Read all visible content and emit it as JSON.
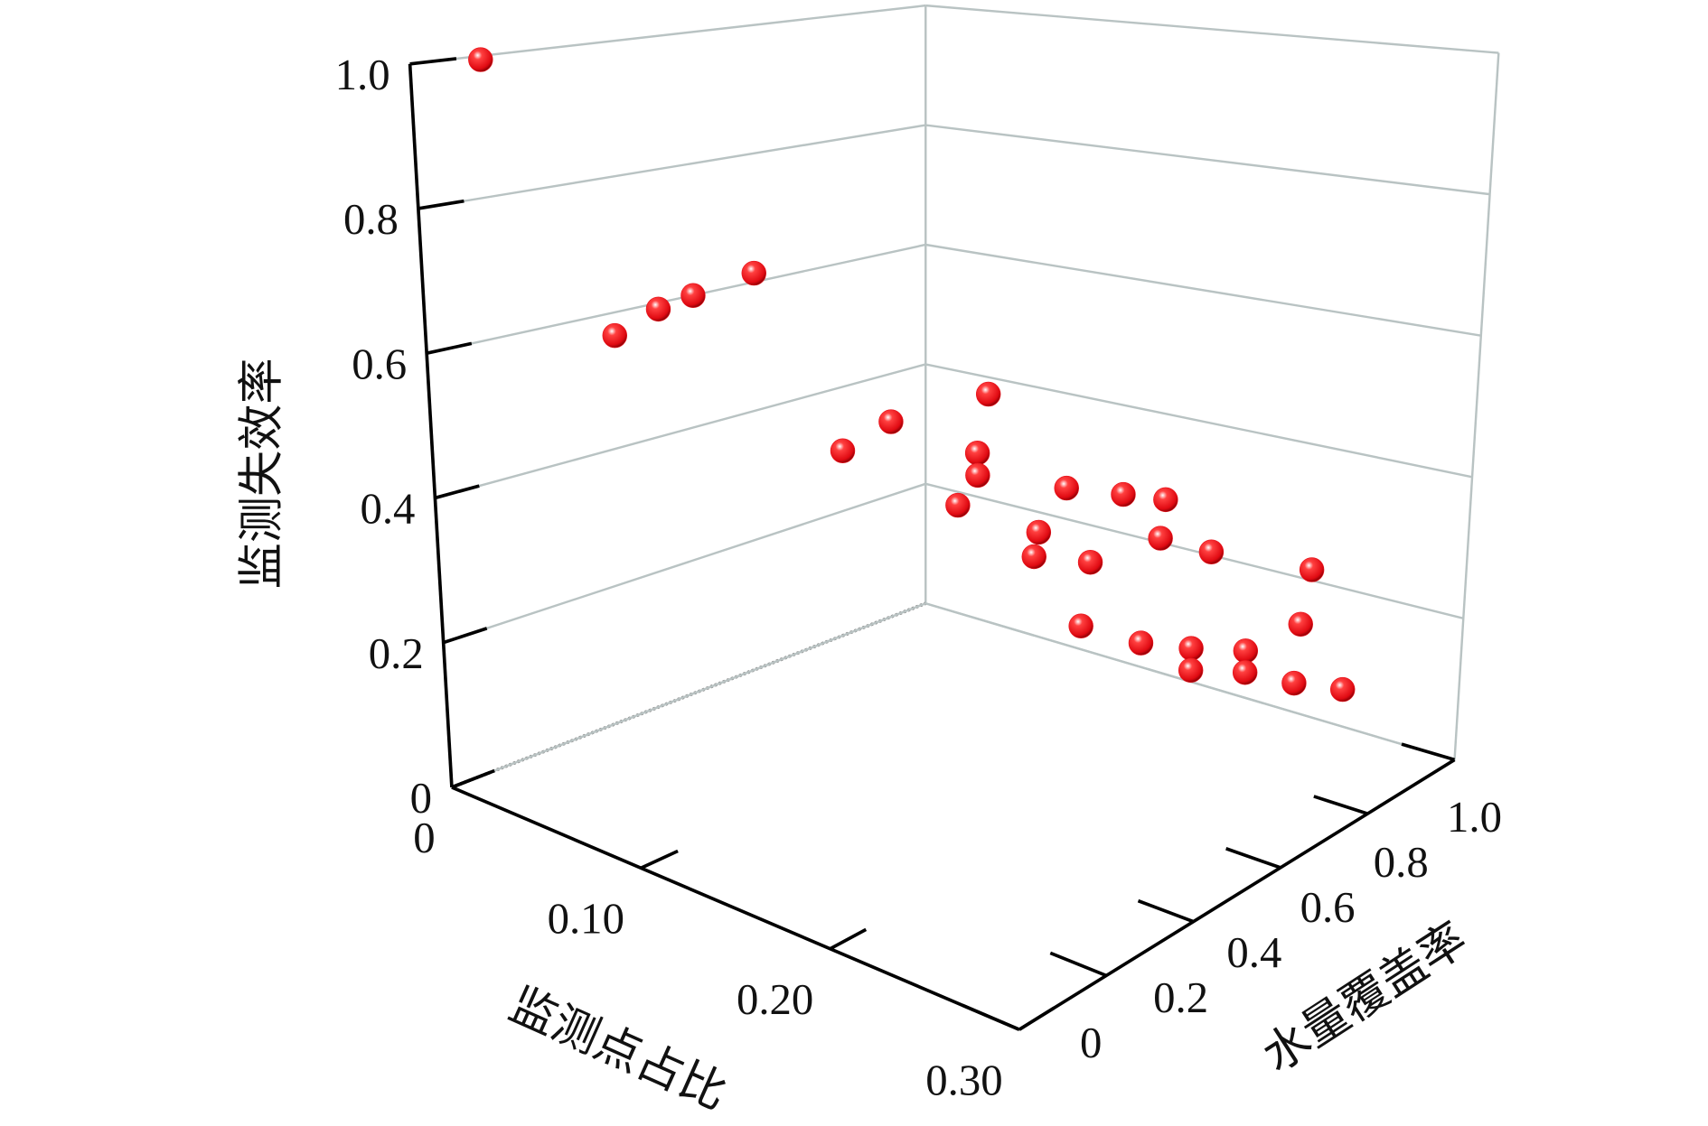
{
  "chart_data": {
    "type": "scatter3d",
    "x_label": "监测点占比",
    "y_label": "水量覆盖率",
    "z_label": "监测失效率",
    "color": "#e8141c",
    "x": [
      0.01,
      0.047,
      0.044,
      0.036,
      0.042,
      0.14,
      0.14,
      0.14,
      0.16,
      0.16,
      0.175,
      0.2,
      0.21,
      0.215,
      0.19,
      0.19,
      0.2,
      0.215,
      0.225,
      0.245,
      0.24,
      0.2,
      0.21,
      0.22,
      0.22,
      0.23,
      0.23,
      0.24,
      0.25
    ],
    "y": [
      0.1,
      0.2,
      0.3,
      0.4,
      0.5,
      0.3,
      0.4,
      0.6,
      0.5,
      0.5,
      0.4,
      0.53,
      0.61,
      0.68,
      0.51,
      0.5,
      0.58,
      0.67,
      0.74,
      0.88,
      0.88,
      0.56,
      0.65,
      0.72,
      0.72,
      0.8,
      0.8,
      0.87,
      0.94
    ],
    "z": [
      1.0,
      0.62,
      0.64,
      0.64,
      0.66,
      0.5,
      0.52,
      0.52,
      0.47,
      0.44,
      0.43,
      0.44,
      0.42,
      0.4,
      0.38,
      0.35,
      0.33,
      0.35,
      0.32,
      0.27,
      0.19,
      0.25,
      0.21,
      0.19,
      0.16,
      0.17,
      0.14,
      0.11,
      0.085
    ],
    "xlim": [
      0,
      0.3
    ],
    "ylim": [
      0,
      1
    ],
    "zlim": [
      0,
      1
    ],
    "xticks": [
      0,
      {
        "value": 0.1,
        "label": "0.10"
      },
      {
        "value": 0.2,
        "label": "0.20"
      },
      {
        "value": 0.3,
        "label": "0.30"
      }
    ],
    "yticks": [
      0,
      0.2,
      0.4,
      0.6,
      0.8,
      {
        "value": 1,
        "label": "1.0"
      }
    ],
    "zticks": [
      0,
      0.2,
      0.4,
      0.6,
      0.8,
      {
        "value": 1,
        "label": "1.0"
      }
    ],
    "grid": true
  }
}
